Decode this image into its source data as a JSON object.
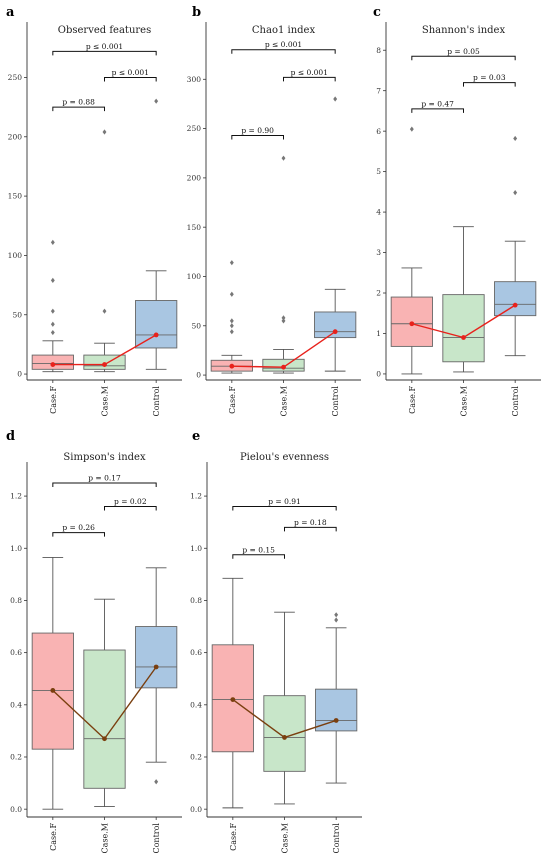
{
  "chart_data": [
    {
      "type": "box",
      "panel_letter": "a",
      "title": "Observed features",
      "categories": [
        "Case.F",
        "Case.M",
        "Control"
      ],
      "ylim": [
        -5,
        290
      ],
      "yticks": [
        0,
        50,
        100,
        150,
        200,
        250
      ],
      "boxes": [
        {
          "category": "Case.F",
          "q1": 4,
          "median": 9,
          "q3": 16,
          "whisker_low": 2,
          "whisker_high": 28,
          "outliers": [
            35,
            42,
            53,
            79,
            111
          ],
          "mean": 8,
          "color": "#f9b3b3"
        },
        {
          "category": "Case.M",
          "q1": 4,
          "median": 7,
          "q3": 16,
          "whisker_low": 2,
          "whisker_high": 26,
          "outliers": [
            53,
            204
          ],
          "mean": 8,
          "color": "#c8e6c9"
        },
        {
          "category": "Control",
          "q1": 22,
          "median": 33,
          "q3": 62,
          "whisker_low": 4,
          "whisker_high": 87,
          "outliers": [
            230
          ],
          "mean": 33,
          "color": "#a9c6e2"
        }
      ],
      "mean_line_color": "#e8221c",
      "pvalues": [
        {
          "from": 0,
          "to": 1,
          "text": "p = 0.88",
          "y": 225
        },
        {
          "from": 1,
          "to": 2,
          "text": "p ≤ 0.001",
          "y": 250
        },
        {
          "from": 0,
          "to": 2,
          "text": "p ≤ 0.001",
          "y": 272
        }
      ]
    },
    {
      "type": "box",
      "panel_letter": "b",
      "title": "Chao1 index",
      "categories": [
        "Case.F",
        "Case.M",
        "Control"
      ],
      "ylim": [
        -5,
        350
      ],
      "yticks": [
        0,
        50,
        100,
        150,
        200,
        250,
        300
      ],
      "boxes": [
        {
          "category": "Case.F",
          "q1": 4,
          "median": 9,
          "q3": 15,
          "whisker_low": 2,
          "whisker_high": 20,
          "outliers": [
            44,
            50,
            55,
            82,
            114
          ],
          "mean": 9,
          "color": "#f9b3b3"
        },
        {
          "category": "Case.M",
          "q1": 4,
          "median": 7,
          "q3": 16,
          "whisker_low": 2,
          "whisker_high": 26,
          "outliers": [
            55,
            58,
            220
          ],
          "mean": 8,
          "color": "#c8e6c9"
        },
        {
          "category": "Control",
          "q1": 38,
          "median": 44,
          "q3": 64,
          "whisker_low": 4,
          "whisker_high": 87,
          "outliers": [
            280
          ],
          "mean": 44,
          "color": "#a9c6e2"
        }
      ],
      "mean_line_color": "#e8221c",
      "pvalues": [
        {
          "from": 0,
          "to": 1,
          "text": "p = 0.90",
          "y": 243
        },
        {
          "from": 1,
          "to": 2,
          "text": "p ≤ 0.001",
          "y": 302
        },
        {
          "from": 0,
          "to": 2,
          "text": "p ≤ 0.001",
          "y": 330
        }
      ]
    },
    {
      "type": "box",
      "panel_letter": "c",
      "title": "Shannon's index",
      "categories": [
        "Case.F",
        "Case.M",
        "Control"
      ],
      "ylim": [
        -0.15,
        8.5
      ],
      "yticks": [
        0,
        1,
        2,
        3,
        4,
        5,
        6,
        7,
        8
      ],
      "boxes": [
        {
          "category": "Case.F",
          "q1": 0.68,
          "median": 1.24,
          "q3": 1.9,
          "whisker_low": 0.0,
          "whisker_high": 2.62,
          "outliers": [
            6.05
          ],
          "mean": 1.24,
          "color": "#f9b3b3"
        },
        {
          "category": "Case.M",
          "q1": 0.3,
          "median": 0.9,
          "q3": 1.96,
          "whisker_low": 0.05,
          "whisker_high": 3.64,
          "outliers": [],
          "mean": 0.9,
          "color": "#c8e6c9"
        },
        {
          "category": "Control",
          "q1": 1.44,
          "median": 1.72,
          "q3": 2.28,
          "whisker_low": 0.45,
          "whisker_high": 3.28,
          "outliers": [
            4.48,
            5.82
          ],
          "mean": 1.7,
          "color": "#a9c6e2"
        }
      ],
      "mean_line_color": "#e8221c",
      "pvalues": [
        {
          "from": 0,
          "to": 1,
          "text": "p = 0.47",
          "y": 6.55
        },
        {
          "from": 1,
          "to": 2,
          "text": "p = 0.03",
          "y": 7.2
        },
        {
          "from": 0,
          "to": 2,
          "text": "p = 0.05",
          "y": 7.85
        }
      ]
    },
    {
      "type": "box",
      "panel_letter": "d",
      "title": "Simpson's index",
      "categories": [
        "Case.F",
        "Case.M",
        "Control"
      ],
      "ylim": [
        -0.03,
        1.3
      ],
      "yticks": [
        0.0,
        0.2,
        0.4,
        0.6,
        0.8,
        1.0,
        1.2
      ],
      "boxes": [
        {
          "category": "Case.F",
          "q1": 0.23,
          "median": 0.455,
          "q3": 0.675,
          "whisker_low": 0.0,
          "whisker_high": 0.965,
          "outliers": [],
          "mean": 0.455,
          "color": "#f9b3b3"
        },
        {
          "category": "Case.M",
          "q1": 0.08,
          "median": 0.27,
          "q3": 0.61,
          "whisker_low": 0.01,
          "whisker_high": 0.805,
          "outliers": [],
          "mean": 0.27,
          "color": "#c8e6c9"
        },
        {
          "category": "Control",
          "q1": 0.465,
          "median": 0.545,
          "q3": 0.7,
          "whisker_low": 0.18,
          "whisker_high": 0.925,
          "outliers": [
            0.105
          ],
          "mean": 0.545,
          "color": "#a9c6e2"
        }
      ],
      "mean_line_color": "#7a3f0f",
      "pvalues": [
        {
          "from": 0,
          "to": 1,
          "text": "p = 0.26",
          "y": 1.06
        },
        {
          "from": 1,
          "to": 2,
          "text": "p = 0.02",
          "y": 1.16
        },
        {
          "from": 0,
          "to": 2,
          "text": "p = 0.17",
          "y": 1.25
        }
      ]
    },
    {
      "type": "box",
      "panel_letter": "e",
      "title": "Pielou's evenness",
      "categories": [
        "Case.F",
        "Case.M",
        "Control"
      ],
      "ylim": [
        -0.03,
        1.3
      ],
      "yticks": [
        0.0,
        0.2,
        0.4,
        0.6,
        0.8,
        1.0,
        1.2
      ],
      "boxes": [
        {
          "category": "Case.F",
          "q1": 0.22,
          "median": 0.42,
          "q3": 0.63,
          "whisker_low": 0.005,
          "whisker_high": 0.885,
          "outliers": [],
          "mean": 0.42,
          "color": "#f9b3b3"
        },
        {
          "category": "Case.M",
          "q1": 0.145,
          "median": 0.275,
          "q3": 0.435,
          "whisker_low": 0.02,
          "whisker_high": 0.755,
          "outliers": [],
          "mean": 0.275,
          "color": "#c8e6c9"
        },
        {
          "category": "Control",
          "q1": 0.3,
          "median": 0.34,
          "q3": 0.46,
          "whisker_low": 0.1,
          "whisker_high": 0.695,
          "outliers": [
            0.725,
            0.745
          ],
          "mean": 0.34,
          "color": "#a9c6e2"
        }
      ],
      "mean_line_color": "#7a3f0f",
      "pvalues": [
        {
          "from": 0,
          "to": 1,
          "text": "p = 0.15",
          "y": 0.975
        },
        {
          "from": 1,
          "to": 2,
          "text": "p = 0.18",
          "y": 1.08
        },
        {
          "from": 0,
          "to": 2,
          "text": "p = 0.91",
          "y": 1.16
        }
      ]
    }
  ]
}
